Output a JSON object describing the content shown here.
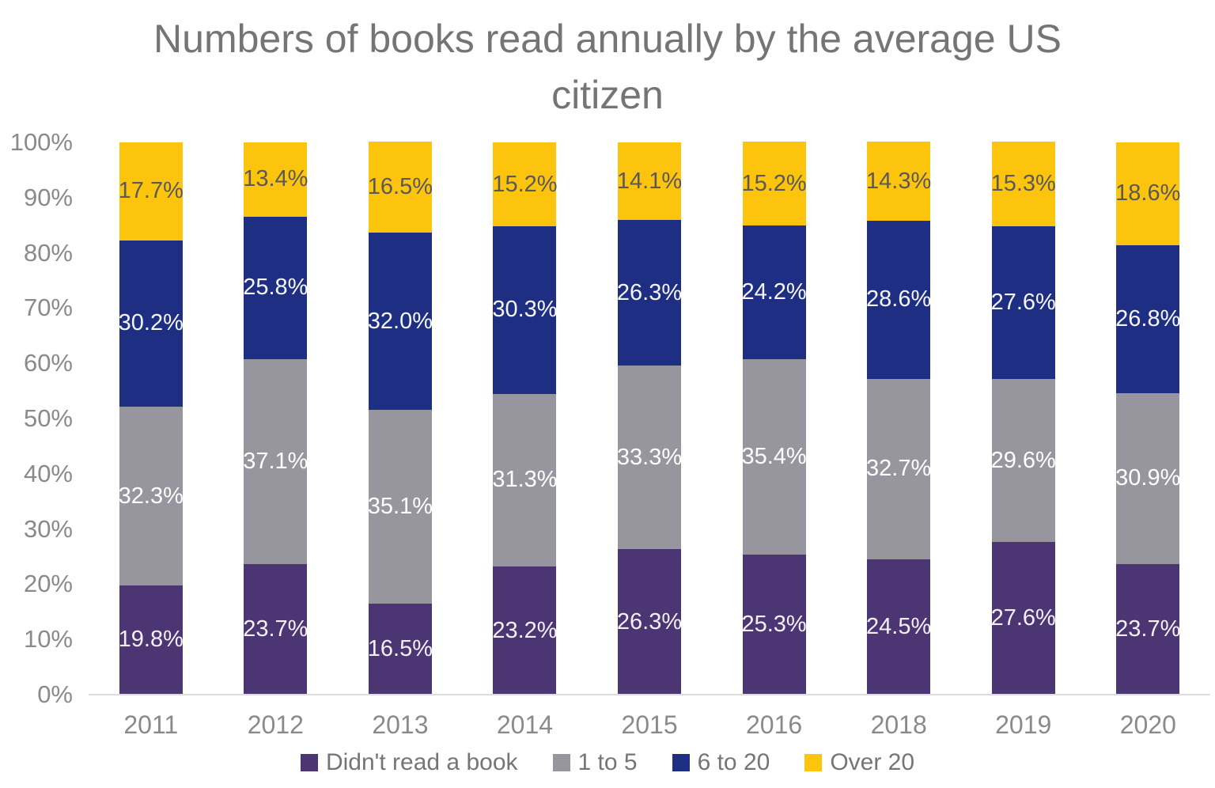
{
  "title": "Numbers of books read annually by the average US citizen",
  "chart_data": {
    "type": "bar",
    "stacked": true,
    "title": "Numbers of books read annually by the average US citizen",
    "categories": [
      "2011",
      "2012",
      "2013",
      "2014",
      "2015",
      "2016",
      "2018",
      "2019",
      "2020"
    ],
    "series": [
      {
        "name": "Didn't read a book",
        "color": "#4b3673",
        "label_color": "#f2f0f5",
        "values": [
          19.8,
          23.7,
          16.5,
          23.2,
          26.3,
          25.3,
          24.5,
          27.6,
          23.7
        ]
      },
      {
        "name": "1 to 5",
        "color": "#97959e",
        "label_color": "#ffffff",
        "values": [
          32.3,
          37.1,
          35.1,
          31.3,
          33.3,
          35.4,
          32.7,
          29.6,
          30.9
        ]
      },
      {
        "name": "6 to 20",
        "color": "#1e2f83",
        "label_color": "#f5f5f8",
        "values": [
          30.2,
          25.8,
          32.0,
          30.3,
          26.3,
          24.2,
          28.6,
          27.6,
          26.8
        ]
      },
      {
        "name": "Over 20",
        "color": "#fdc40e",
        "label_color": "#595959",
        "values": [
          17.7,
          13.4,
          16.5,
          15.2,
          14.1,
          15.2,
          14.3,
          15.3,
          18.6
        ]
      }
    ],
    "value_suffix": "%",
    "y_ticks": [
      "0%",
      "10%",
      "20%",
      "30%",
      "40%",
      "50%",
      "60%",
      "70%",
      "80%",
      "90%",
      "100%"
    ],
    "ylim": [
      0,
      100
    ],
    "grid": false,
    "legend_position": "bottom",
    "xlabel": "",
    "ylabel": ""
  }
}
